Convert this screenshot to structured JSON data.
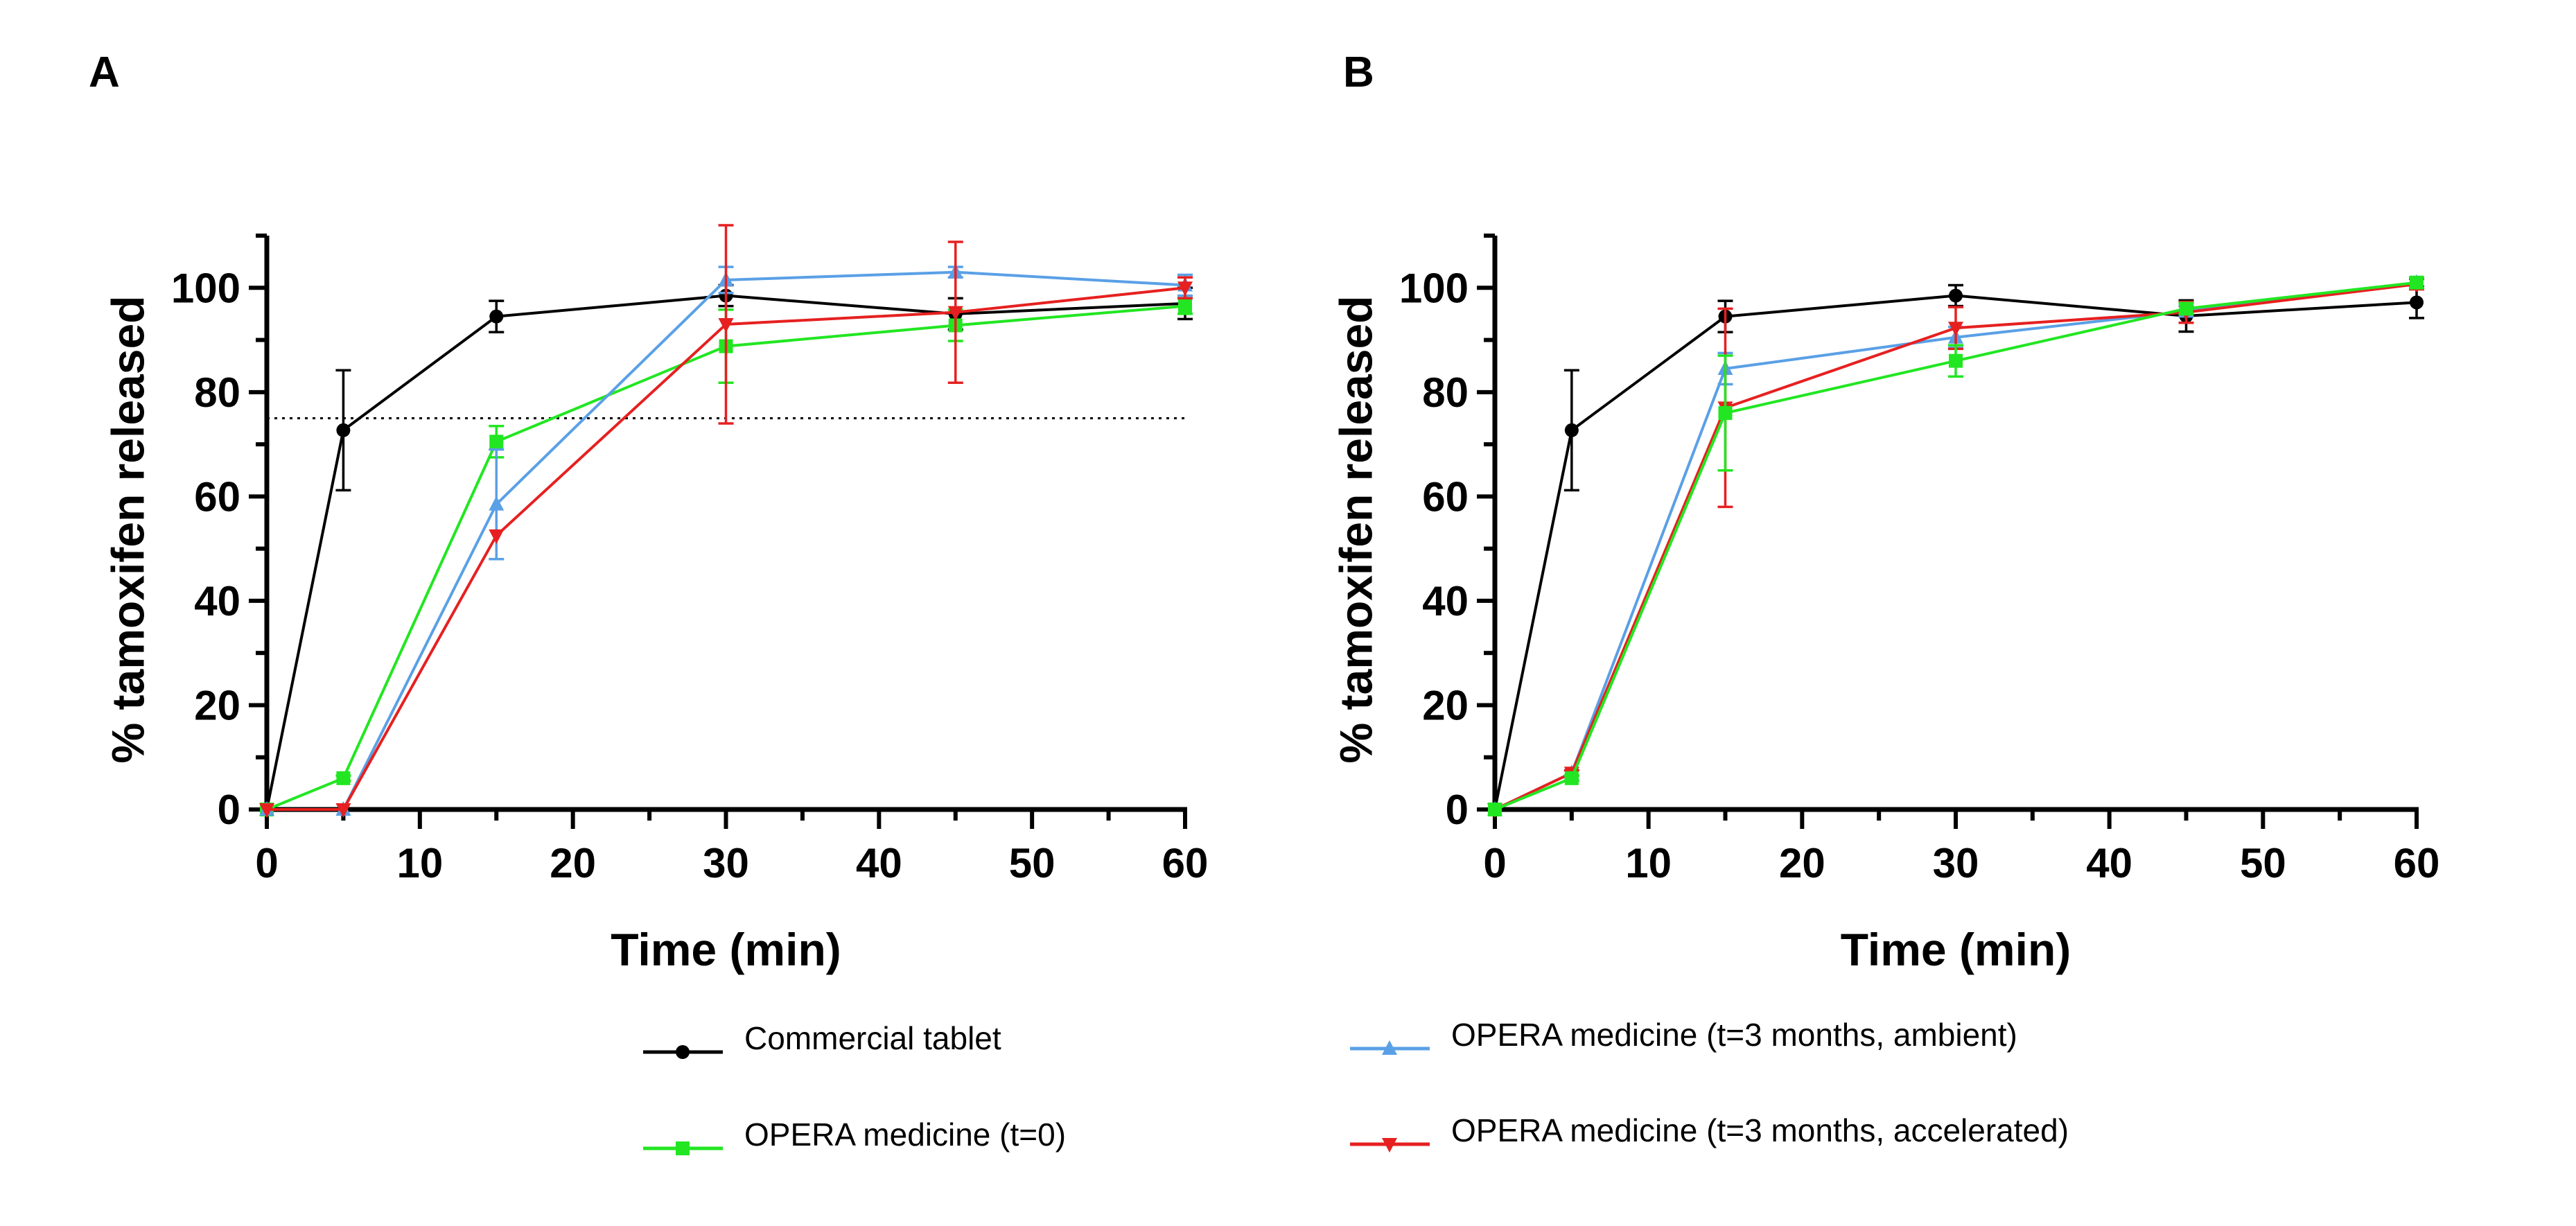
{
  "legend": [
    {
      "series": "commercial",
      "label": "Commercial tablet",
      "color": "#000000",
      "marker": "circle"
    },
    {
      "series": "t0",
      "label": "OPERA medicine (t=0)",
      "color": "#22e622",
      "marker": "square"
    },
    {
      "series": "ambient",
      "label": "OPERA medicine (t=3 months, ambient)",
      "color": "#5aa0e6",
      "marker": "triangle-up"
    },
    {
      "series": "accelerated",
      "label": "OPERA medicine (t=3 months, accelerated)",
      "color": "#e62020",
      "marker": "triangle-down"
    }
  ],
  "chart_data": [
    {
      "panel": "A",
      "type": "line",
      "xlabel": "Time (min)",
      "ylabel": "% tamoxifen released",
      "xlim": [
        0,
        60
      ],
      "ylim": [
        0,
        110
      ],
      "xticks": [
        0,
        10,
        20,
        30,
        40,
        50,
        60
      ],
      "yticks": [
        0,
        20,
        40,
        60,
        80,
        100
      ],
      "reference_line": {
        "y": 75,
        "style": "dotted"
      },
      "x": [
        0,
        5,
        15,
        30,
        45,
        60
      ],
      "series": [
        {
          "key": "commercial",
          "y": [
            0,
            72.7,
            94.5,
            98.5,
            95,
            97
          ],
          "err": [
            0,
            11.5,
            3,
            2,
            3,
            3
          ]
        },
        {
          "key": "t0",
          "y": [
            0,
            6,
            70.5,
            88.8,
            92.8,
            96.5
          ],
          "err": [
            0,
            0.5,
            3,
            7,
            3,
            1.5
          ]
        },
        {
          "key": "ambient",
          "y": [
            0,
            0,
            58.5,
            101.5,
            103,
            100.5
          ],
          "err": [
            0,
            0,
            10.5,
            2.5,
            1,
            2
          ]
        },
        {
          "key": "accelerated",
          "y": [
            0,
            0,
            52.5,
            93,
            95.3,
            100
          ],
          "err": [
            0,
            0,
            0,
            19,
            13.5,
            2
          ]
        }
      ]
    },
    {
      "panel": "B",
      "type": "line",
      "xlabel": "Time (min)",
      "ylabel": "% tamoxifen released",
      "xlim": [
        0,
        60
      ],
      "ylim": [
        0,
        110
      ],
      "xticks": [
        0,
        10,
        20,
        30,
        40,
        50,
        60
      ],
      "yticks": [
        0,
        20,
        40,
        60,
        80,
        100
      ],
      "x": [
        0,
        5,
        15,
        30,
        45,
        60
      ],
      "series": [
        {
          "key": "commercial",
          "y": [
            0,
            72.7,
            94.5,
            98.5,
            94.6,
            97.2
          ],
          "err": [
            0,
            11.5,
            3,
            2,
            3,
            3
          ]
        },
        {
          "key": "ambient",
          "y": [
            0,
            7,
            84.5,
            90.5,
            95.5,
            101
          ],
          "err": [
            0,
            0.5,
            3,
            2,
            1,
            1
          ]
        },
        {
          "key": "accelerated",
          "y": [
            0,
            7,
            77,
            92.3,
            95.3,
            100.7
          ],
          "err": [
            0,
            0.5,
            19,
            4,
            2,
            1
          ]
        },
        {
          "key": "t0",
          "y": [
            0,
            6,
            76,
            86,
            96,
            101
          ],
          "err": [
            0,
            0.5,
            11,
            3,
            1,
            1
          ]
        }
      ]
    }
  ]
}
